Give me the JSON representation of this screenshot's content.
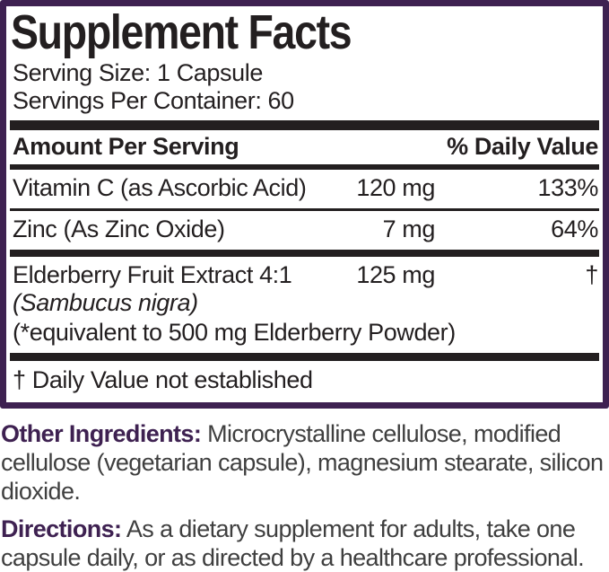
{
  "colors": {
    "accent_purple": "#3e2151",
    "ink_black": "#231f20",
    "body_gray": "#3f3f3f"
  },
  "panel": {
    "title": "Supplement Facts",
    "serving_size": "Serving Size: 1 Capsule",
    "servings_per_container": "Servings Per Container: 60",
    "header": {
      "amount_label": "Amount Per Serving",
      "dv_label": "% Daily Value"
    },
    "rows": [
      {
        "name": "Vitamin C (as Ascorbic Acid)",
        "amount": "120 mg",
        "daily_value": "133%"
      },
      {
        "name": "Zinc (As Zinc Oxide)",
        "amount": "7 mg",
        "daily_value": "64%"
      },
      {
        "name": "Elderberry Fruit Extract 4:1",
        "latin_name": "(Sambucus nigra)",
        "equivalence_note": "(*equivalent to 500 mg Elderberry Powder)",
        "amount": "125 mg",
        "daily_value": "†"
      }
    ],
    "footnote": "† Daily Value not established"
  },
  "sections": {
    "other_ingredients": {
      "label": "Other Ingredients:",
      "text": "Microcrystalline cellulose, modified cellulose (vegetarian capsule), magnesium stearate, silicon dioxide."
    },
    "directions": {
      "label": "Directions:",
      "text": "As a dietary supplement for adults, take one capsule daily, or as directed by a healthcare professional."
    }
  }
}
